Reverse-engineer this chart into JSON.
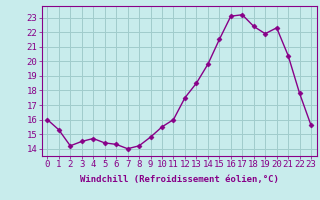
{
  "x": [
    0,
    1,
    2,
    3,
    4,
    5,
    6,
    7,
    8,
    9,
    10,
    11,
    12,
    13,
    14,
    15,
    16,
    17,
    18,
    19,
    20,
    21,
    22,
    23
  ],
  "y": [
    16.0,
    15.3,
    14.2,
    14.5,
    14.7,
    14.4,
    14.3,
    14.0,
    14.2,
    14.8,
    15.5,
    16.0,
    17.5,
    18.5,
    19.8,
    21.5,
    23.1,
    23.2,
    22.4,
    21.9,
    22.3,
    20.4,
    17.8,
    15.6
  ],
  "line_color": "#880088",
  "marker": "D",
  "marker_size": 2.5,
  "bg_color": "#c8ecec",
  "grid_color": "#a0cccc",
  "xlabel": "Windchill (Refroidissement éolien,°C)",
  "ylim": [
    13.5,
    23.8
  ],
  "xlim": [
    -0.5,
    23.5
  ],
  "yticks": [
    14,
    15,
    16,
    17,
    18,
    19,
    20,
    21,
    22,
    23
  ],
  "xticks": [
    0,
    1,
    2,
    3,
    4,
    5,
    6,
    7,
    8,
    9,
    10,
    11,
    12,
    13,
    14,
    15,
    16,
    17,
    18,
    19,
    20,
    21,
    22,
    23
  ],
  "axis_color": "#880088",
  "font_size": 6.5,
  "linewidth": 1.0
}
